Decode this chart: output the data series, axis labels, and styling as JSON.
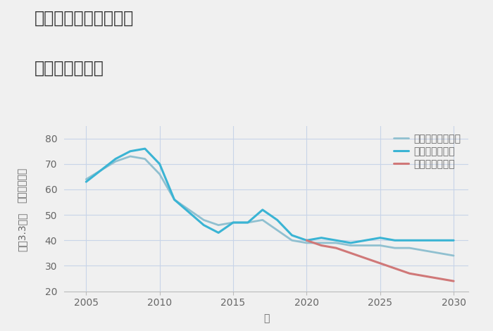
{
  "title_line1": "愛知県豊明市新栄町の",
  "title_line2": "土地の価格推移",
  "xlabel": "年",
  "ylabel_top": "単価（万円）",
  "ylabel_bottom": "坪（3.3㎡）",
  "background_color": "#f0f0f0",
  "plot_bg_color": "#f0f0f0",
  "grid_color": "#c8d4e8",
  "ylim": [
    20,
    85
  ],
  "yticks": [
    20,
    30,
    40,
    50,
    60,
    70,
    80
  ],
  "xlim": [
    2003.5,
    2031
  ],
  "xticks": [
    2005,
    2010,
    2015,
    2020,
    2025,
    2030
  ],
  "good_scenario": {
    "label": "グッドシナリオ",
    "color": "#3ab4d4",
    "linewidth": 2.2,
    "x": [
      2005,
      2007,
      2008,
      2009,
      2010,
      2011,
      2013,
      2014,
      2015,
      2016,
      2017,
      2018,
      2019,
      2020,
      2021,
      2022,
      2023,
      2024,
      2025,
      2026,
      2027,
      2028,
      2029,
      2030
    ],
    "y": [
      63,
      72,
      75,
      76,
      70,
      56,
      46,
      43,
      47,
      47,
      52,
      48,
      42,
      40,
      41,
      40,
      39,
      40,
      41,
      40,
      40,
      40,
      40,
      40
    ]
  },
  "bad_scenario": {
    "label": "バッドシナリオ",
    "color": "#d07878",
    "linewidth": 2.2,
    "x": [
      2020,
      2021,
      2022,
      2023,
      2024,
      2025,
      2026,
      2027,
      2028,
      2029,
      2030
    ],
    "y": [
      40,
      38,
      37,
      35,
      33,
      31,
      29,
      27,
      26,
      25,
      24
    ]
  },
  "normal_scenario": {
    "label": "ノーマルシナリオ",
    "color": "#90c0d0",
    "linewidth": 2.0,
    "x": [
      2005,
      2007,
      2008,
      2009,
      2010,
      2011,
      2013,
      2014,
      2015,
      2016,
      2017,
      2018,
      2019,
      2020,
      2021,
      2022,
      2023,
      2024,
      2025,
      2026,
      2027,
      2028,
      2029,
      2030
    ],
    "y": [
      64,
      71,
      73,
      72,
      66,
      56,
      48,
      46,
      47,
      47,
      48,
      44,
      40,
      39,
      39,
      39,
      38,
      38,
      38,
      37,
      37,
      36,
      35,
      34
    ]
  },
  "title_fontsize": 17,
  "label_fontsize": 10,
  "tick_fontsize": 10,
  "legend_fontsize": 10,
  "title_color": "#333333",
  "tick_color": "#666666",
  "label_color": "#666666"
}
